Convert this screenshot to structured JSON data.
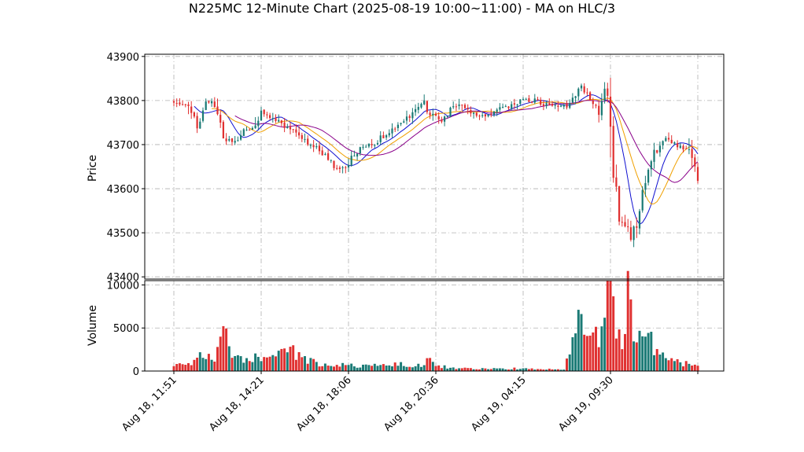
{
  "chart_data": {
    "type": "candlestick",
    "title": "N225MC 12-Minute Chart (2025-08-19 10:00~11:00) - MA on HLC/3",
    "price_panel": {
      "ylabel": "Price",
      "ylim": [
        43395,
        43905
      ],
      "yticks": [
        43400,
        43500,
        43600,
        43700,
        43800,
        43900
      ],
      "grid": true
    },
    "volume_panel": {
      "ylabel": "Volume",
      "ylim": [
        0,
        10500
      ],
      "yticks": [
        0,
        5000,
        10000
      ],
      "grid": true
    },
    "x_tick_labels": [
      "Aug 18, 11:51",
      "Aug 18, 14:21",
      "Aug 18, 18:06",
      "Aug 18, 20:36",
      "Aug 19, 04:15",
      "Aug 19, 09:30"
    ],
    "x_tick_index": [
      0,
      30,
      60,
      90,
      120,
      150
    ],
    "bar_count": 181,
    "colors": {
      "up": "#1a7a75",
      "down": "#e03030",
      "ma_fast": "#1010d0",
      "ma_mid": "#f0a000",
      "ma_slow": "#8a008a"
    },
    "close_anchors": [
      [
        0,
        43795
      ],
      [
        5,
        43790
      ],
      [
        8,
        43745
      ],
      [
        11,
        43800
      ],
      [
        14,
        43790
      ],
      [
        17,
        43720
      ],
      [
        20,
        43700
      ],
      [
        24,
        43730
      ],
      [
        28,
        43740
      ],
      [
        30,
        43775
      ],
      [
        34,
        43760
      ],
      [
        38,
        43740
      ],
      [
        42,
        43730
      ],
      [
        46,
        43700
      ],
      [
        50,
        43690
      ],
      [
        54,
        43660
      ],
      [
        57,
        43640
      ],
      [
        60,
        43660
      ],
      [
        64,
        43690
      ],
      [
        68,
        43700
      ],
      [
        72,
        43720
      ],
      [
        76,
        43740
      ],
      [
        80,
        43760
      ],
      [
        84,
        43790
      ],
      [
        86,
        43795
      ],
      [
        88,
        43770
      ],
      [
        92,
        43750
      ],
      [
        95,
        43780
      ],
      [
        98,
        43790
      ],
      [
        100,
        43780
      ],
      [
        104,
        43770
      ],
      [
        108,
        43765
      ],
      [
        112,
        43780
      ],
      [
        116,
        43790
      ],
      [
        120,
        43800
      ],
      [
        124,
        43800
      ],
      [
        128,
        43790
      ],
      [
        132,
        43785
      ],
      [
        136,
        43790
      ],
      [
        138,
        43815
      ],
      [
        140,
        43830
      ],
      [
        143,
        43800
      ],
      [
        146,
        43780
      ],
      [
        148,
        43820
      ],
      [
        150,
        43780
      ],
      [
        151,
        43640
      ],
      [
        153,
        43530
      ],
      [
        155,
        43520
      ],
      [
        157,
        43490
      ],
      [
        159,
        43530
      ],
      [
        161,
        43600
      ],
      [
        163,
        43640
      ],
      [
        165,
        43680
      ],
      [
        167,
        43700
      ],
      [
        169,
        43720
      ],
      [
        172,
        43700
      ],
      [
        175,
        43690
      ],
      [
        177,
        43700
      ],
      [
        179,
        43650
      ],
      [
        180,
        43620
      ]
    ],
    "volume_anchors": [
      [
        0,
        900
      ],
      [
        5,
        700
      ],
      [
        8,
        1500
      ],
      [
        11,
        2200
      ],
      [
        14,
        1800
      ],
      [
        17,
        4500
      ],
      [
        20,
        1600
      ],
      [
        24,
        1200
      ],
      [
        28,
        1500
      ],
      [
        30,
        1100
      ],
      [
        34,
        1400
      ],
      [
        38,
        2500
      ],
      [
        42,
        2100
      ],
      [
        46,
        1300
      ],
      [
        50,
        800
      ],
      [
        54,
        900
      ],
      [
        58,
        700
      ],
      [
        62,
        600
      ],
      [
        66,
        700
      ],
      [
        70,
        650
      ],
      [
        74,
        700
      ],
      [
        78,
        750
      ],
      [
        82,
        600
      ],
      [
        86,
        800
      ],
      [
        88,
        2300
      ],
      [
        90,
        700
      ],
      [
        94,
        400
      ],
      [
        98,
        300
      ],
      [
        102,
        300
      ],
      [
        106,
        300
      ],
      [
        110,
        250
      ],
      [
        114,
        250
      ],
      [
        118,
        300
      ],
      [
        122,
        250
      ],
      [
        126,
        200
      ],
      [
        130,
        200
      ],
      [
        134,
        250
      ],
      [
        138,
        5000
      ],
      [
        140,
        7500
      ],
      [
        142,
        5500
      ],
      [
        144,
        4000
      ],
      [
        146,
        3800
      ],
      [
        148,
        7800
      ],
      [
        150,
        9200
      ],
      [
        152,
        6000
      ],
      [
        154,
        3000
      ],
      [
        156,
        9000
      ],
      [
        158,
        5000
      ],
      [
        160,
        3500
      ],
      [
        162,
        3200
      ],
      [
        164,
        3600
      ],
      [
        166,
        2000
      ],
      [
        168,
        1600
      ],
      [
        170,
        1400
      ],
      [
        172,
        1300
      ],
      [
        175,
        900
      ],
      [
        178,
        700
      ],
      [
        180,
        600
      ]
    ]
  }
}
